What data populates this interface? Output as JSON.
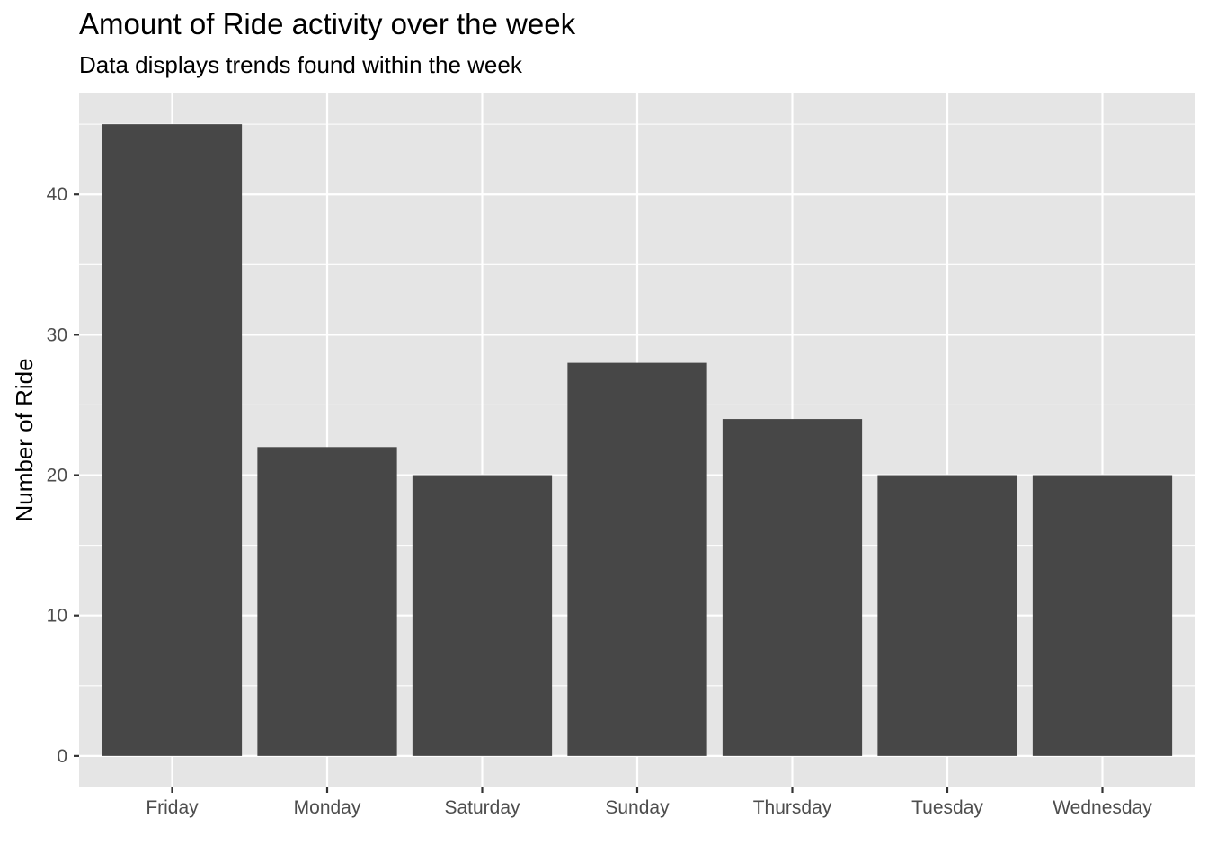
{
  "chart_data": {
    "type": "bar",
    "title": "Amount of Ride activity over the week",
    "subtitle": "Data displays trends found within the week",
    "xlabel": "",
    "ylabel": "Number of Ride",
    "categories": [
      "Friday",
      "Monday",
      "Saturday",
      "Sunday",
      "Thursday",
      "Tuesday",
      "Wednesday"
    ],
    "values": [
      45,
      22,
      20,
      28,
      24,
      20,
      20
    ],
    "ylim": [
      -2.25,
      47.25
    ],
    "yticks": [
      0,
      10,
      20,
      30,
      40
    ],
    "grid": true,
    "legend": "none",
    "colors": {
      "bar": "#474747",
      "panel": "#e5e5e5",
      "grid": "#ffffff",
      "tick_label": "#4d4d4d",
      "tick_mark": "#333333"
    }
  }
}
